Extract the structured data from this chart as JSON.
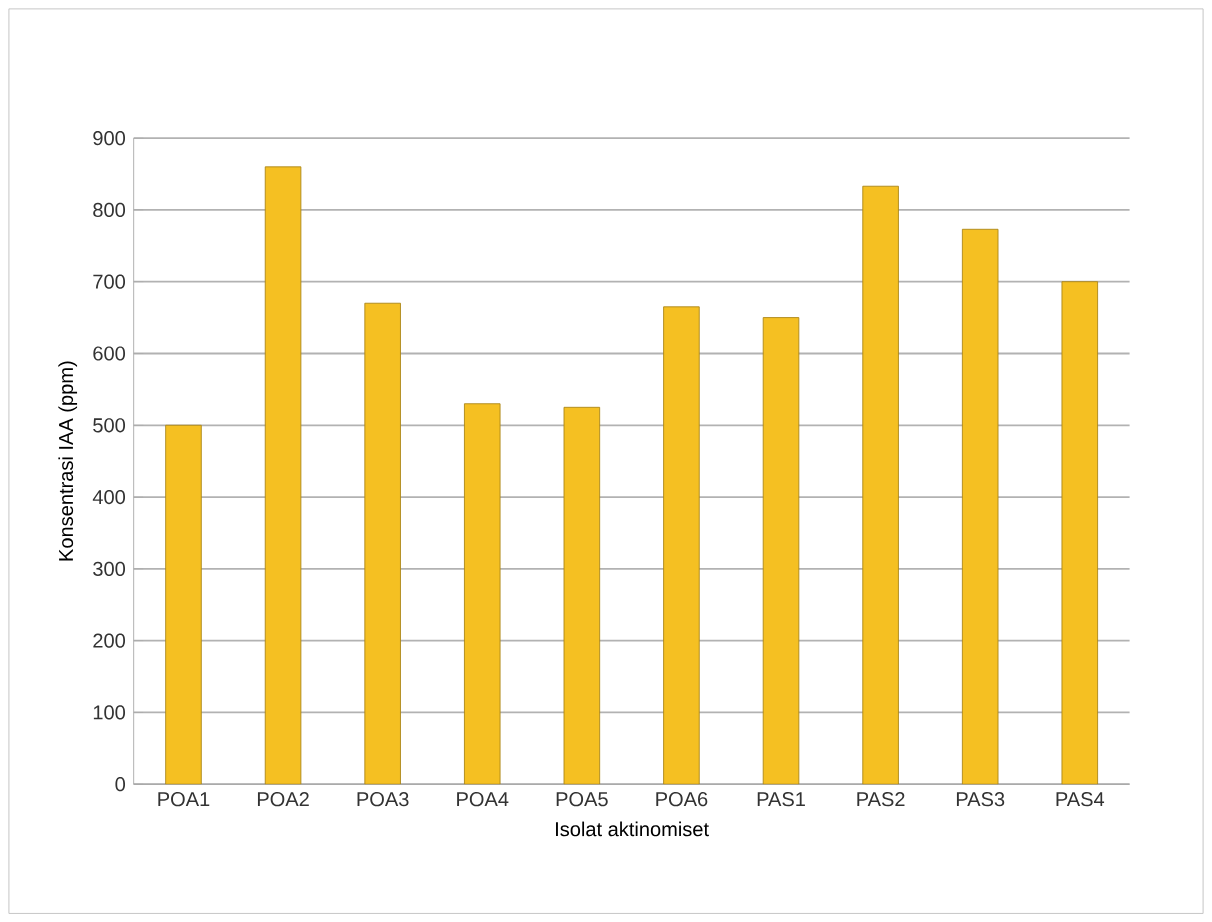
{
  "chart_data": {
    "type": "bar",
    "categories": [
      "POA1",
      "POA2",
      "POA3",
      "POA4",
      "POA5",
      "POA6",
      "PAS1",
      "PAS2",
      "PAS3",
      "PAS4"
    ],
    "values": [
      500,
      860,
      670,
      530,
      525,
      665,
      650,
      833,
      773,
      700
    ],
    "color": "#f5c022",
    "xlabel": "Isolat aktinomiset",
    "ylabel": "Konsentrasi IAA  (ppm)",
    "ylim": [
      0,
      900
    ],
    "yticks": [
      0,
      100,
      200,
      300,
      400,
      500,
      600,
      700,
      800,
      900
    ],
    "grid": "y"
  }
}
